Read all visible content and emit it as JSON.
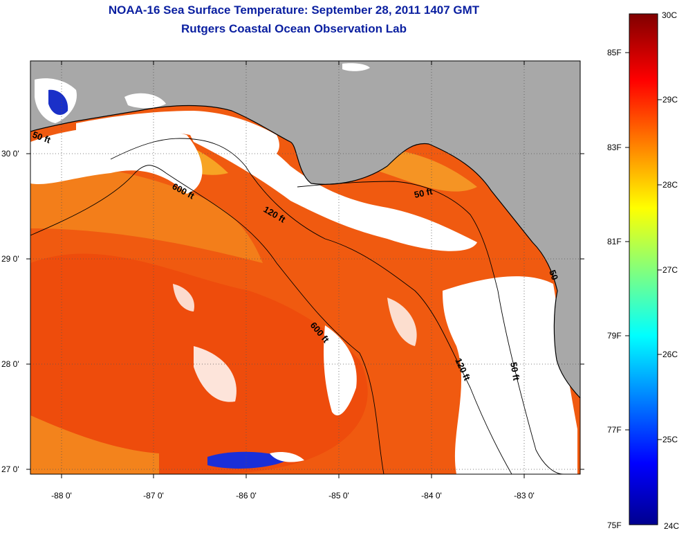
{
  "title": {
    "line1": "NOAA-16 Sea Surface Temperature:  September 28, 2011 1407 GMT",
    "line2": "Rutgers Coastal Ocean Observation Lab"
  },
  "map": {
    "x_ticks": [
      "-88 0'",
      "-87 0'",
      "-86 0'",
      "-85 0'",
      "-84 0'",
      "-83 0'"
    ],
    "y_ticks": [
      "30 0'",
      "29 0'",
      "28 0'",
      "27 0'"
    ],
    "contours": {
      "c50_west": "50 ft",
      "c600_north": "600 ft",
      "c120_north": "120 ft",
      "c50_east": "50 ft",
      "c600_south": "600 ft",
      "c120_south": "120 ft",
      "c50_south": "50 ft",
      "c_edge": "50"
    },
    "colors": {
      "land": "#a8a8a8",
      "cloud": "#ffffff",
      "water_warm": "#f05a10"
    }
  },
  "colorbar": {
    "fahrenheit": [
      "85F",
      "83F",
      "81F",
      "79F",
      "77F",
      "75F"
    ],
    "celsius": [
      "30C",
      "29C",
      "28C",
      "27C",
      "26C",
      "25C",
      "24C"
    ],
    "range_c": [
      24,
      30
    ]
  }
}
